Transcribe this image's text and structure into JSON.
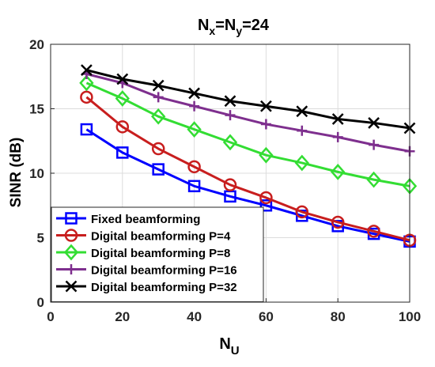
{
  "chart_data": {
    "type": "line",
    "title": {
      "base": "N",
      "sub1": "x",
      "mid": "=N",
      "sub2": "y",
      "tail": "=24"
    },
    "xlabel": {
      "base": "N",
      "sub": "U"
    },
    "ylabel": "SINR (dB)",
    "xlim": [
      0,
      100
    ],
    "ylim": [
      0,
      20
    ],
    "xticks": [
      0,
      20,
      40,
      60,
      80,
      100
    ],
    "yticks": [
      0,
      5,
      10,
      15,
      20
    ],
    "grid": true,
    "legend_position": "bottom-left",
    "x": [
      10,
      20,
      30,
      40,
      50,
      60,
      70,
      80,
      90,
      100
    ],
    "series": [
      {
        "name": "Fixed beamforming",
        "color": "#0000ff",
        "marker": "square",
        "values": [
          13.4,
          11.6,
          10.3,
          9.0,
          8.2,
          7.5,
          6.7,
          5.9,
          5.3,
          4.7
        ]
      },
      {
        "name": "Digital beamforming P=4",
        "color": "#c81e1e",
        "marker": "circle",
        "values": [
          15.9,
          13.6,
          11.9,
          10.5,
          9.1,
          8.1,
          7.0,
          6.2,
          5.5,
          4.8
        ]
      },
      {
        "name": "Digital beamforming P=8",
        "color": "#33dd33",
        "marker": "diamond",
        "values": [
          17.0,
          15.8,
          14.4,
          13.4,
          12.4,
          11.4,
          10.8,
          10.1,
          9.5,
          9.0
        ]
      },
      {
        "name": "Digital beamforming P=16",
        "color": "#7e2f8e",
        "marker": "plus",
        "values": [
          17.7,
          17.0,
          15.9,
          15.2,
          14.5,
          13.8,
          13.3,
          12.8,
          12.2,
          11.7
        ]
      },
      {
        "name": "Digital beamforming P=32",
        "color": "#000000",
        "marker": "x",
        "values": [
          18.0,
          17.3,
          16.8,
          16.2,
          15.6,
          15.2,
          14.8,
          14.2,
          13.9,
          13.5
        ]
      }
    ]
  }
}
